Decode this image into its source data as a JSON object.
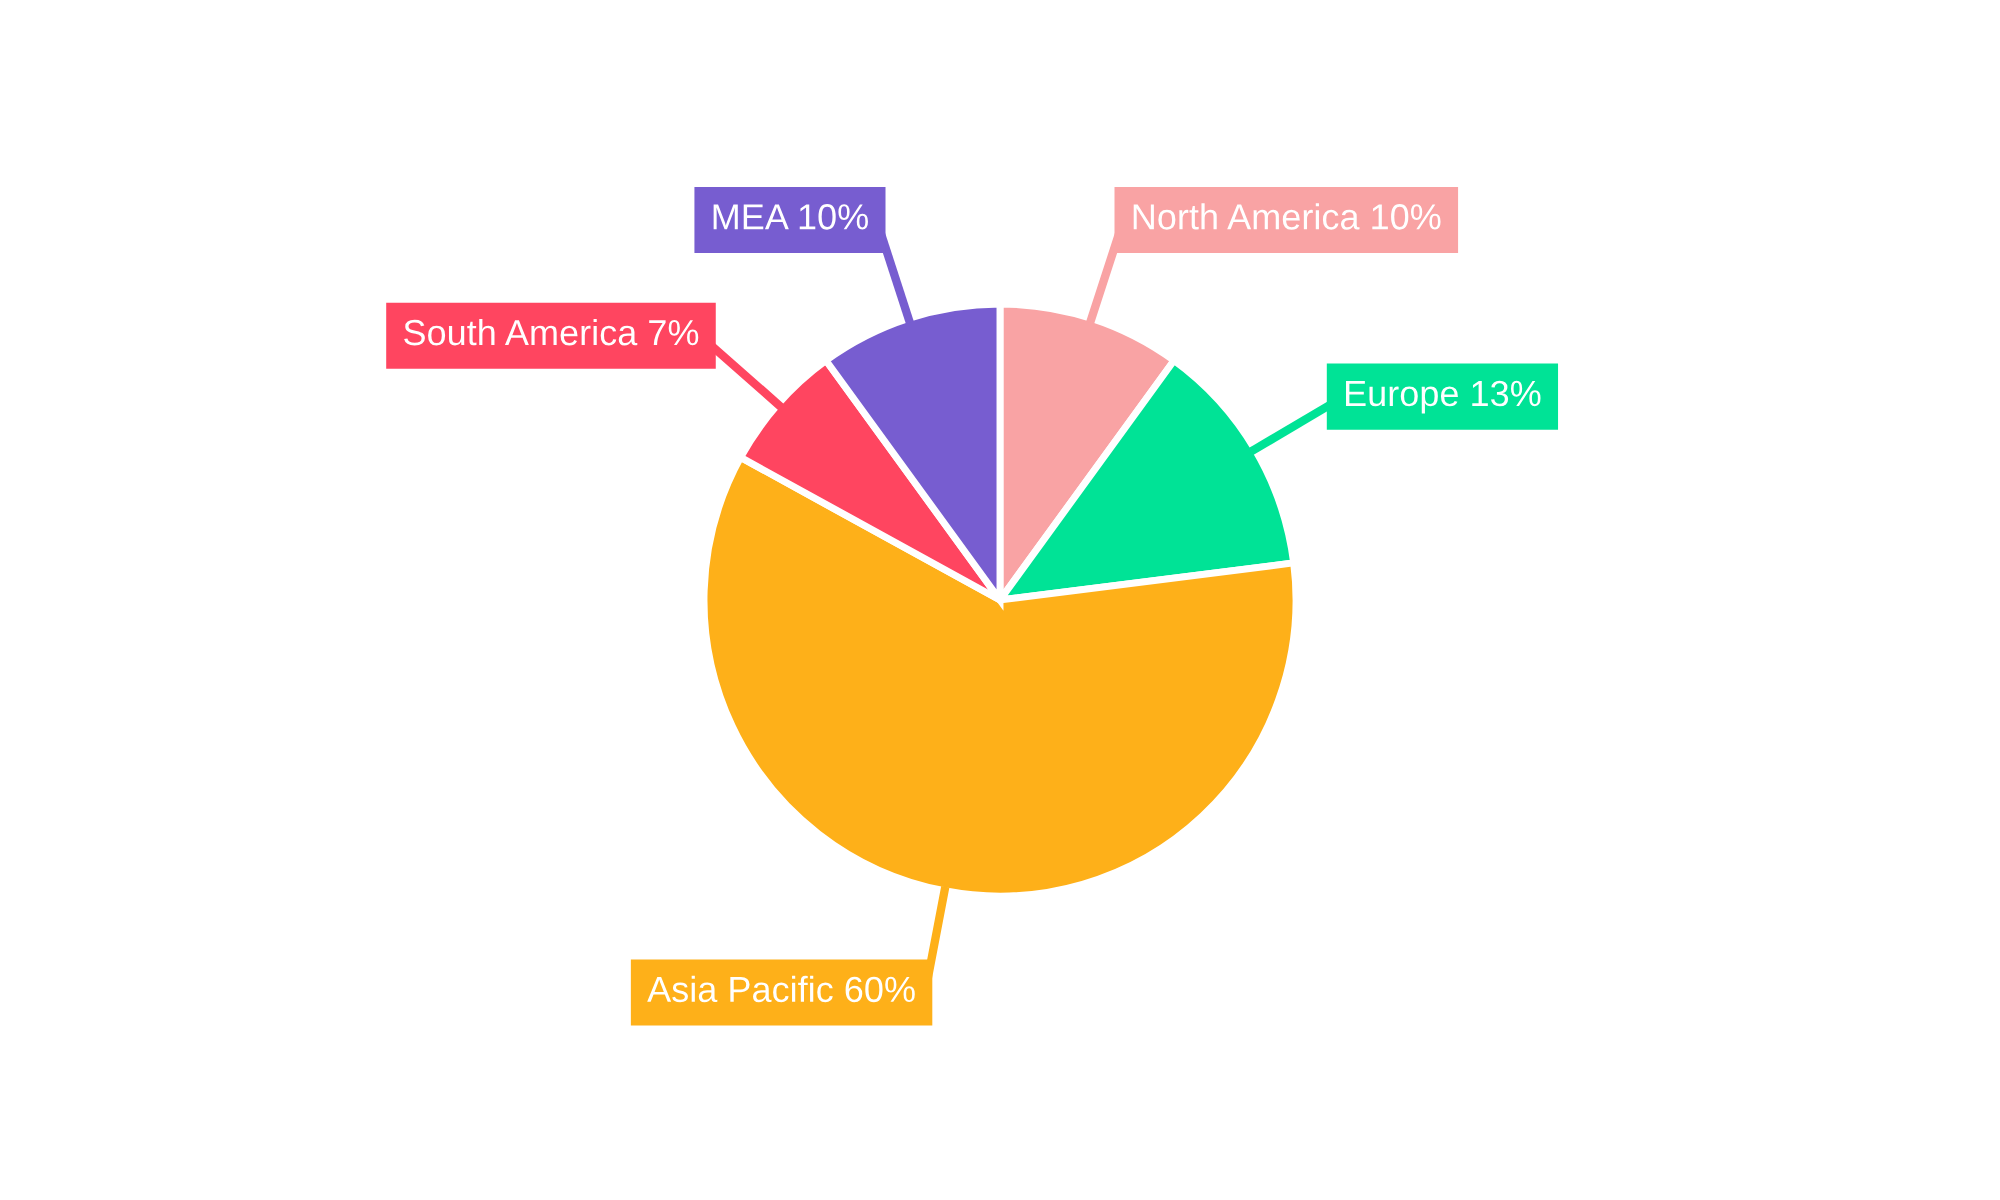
{
  "chart_data": {
    "type": "pie",
    "categories": [
      "North America",
      "Europe",
      "Asia Pacific",
      "South America",
      "MEA"
    ],
    "values": [
      10,
      13,
      60,
      7,
      10
    ],
    "value_labels": [
      "10%",
      "13%",
      "60%",
      "7%",
      "10%"
    ],
    "colors": [
      "#f9a3a4",
      "#00e396",
      "#feb019",
      "#ff4560",
      "#775dd0"
    ],
    "legend": false
  }
}
